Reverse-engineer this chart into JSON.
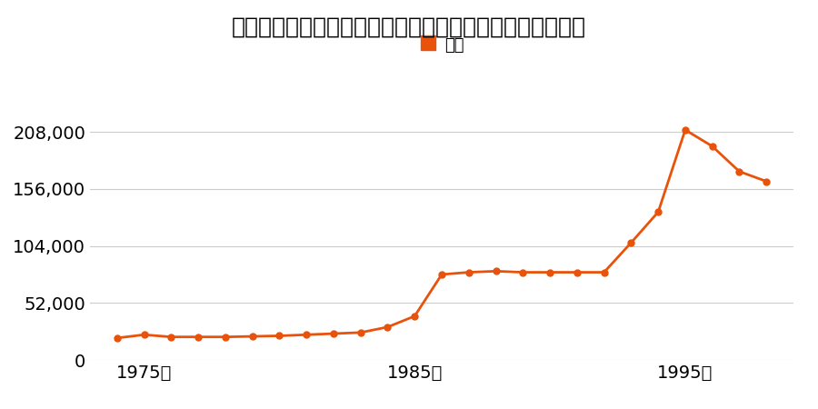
{
  "title": "埼玉県比企郡滑川村大字月輪字新道下４４番５の地価推移",
  "years": [
    1974,
    1975,
    1976,
    1977,
    1978,
    1979,
    1980,
    1981,
    1982,
    1983,
    1984,
    1985,
    1986,
    1987,
    1988,
    1989,
    1990,
    1991,
    1992,
    1993,
    1994,
    1995,
    1996,
    1997,
    1998
  ],
  "values": [
    20000,
    23000,
    21000,
    21000,
    21000,
    21500,
    22000,
    23000,
    24000,
    25000,
    30000,
    40000,
    78000,
    80000,
    81000,
    80000,
    80000,
    80000,
    80000,
    107000,
    135000,
    210000,
    195000,
    172000,
    163000
  ],
  "line_color": "#E8520A",
  "marker_color": "#E8520A",
  "legend_label": "価格",
  "yticks": [
    0,
    52000,
    104000,
    156000,
    208000
  ],
  "xticks": [
    1975,
    1985,
    1995
  ],
  "xlim": [
    1973,
    1999
  ],
  "ylim": [
    0,
    224000
  ],
  "background_color": "#ffffff",
  "grid_color": "#cccccc",
  "title_fontsize": 18,
  "axis_fontsize": 14,
  "legend_fontsize": 13
}
